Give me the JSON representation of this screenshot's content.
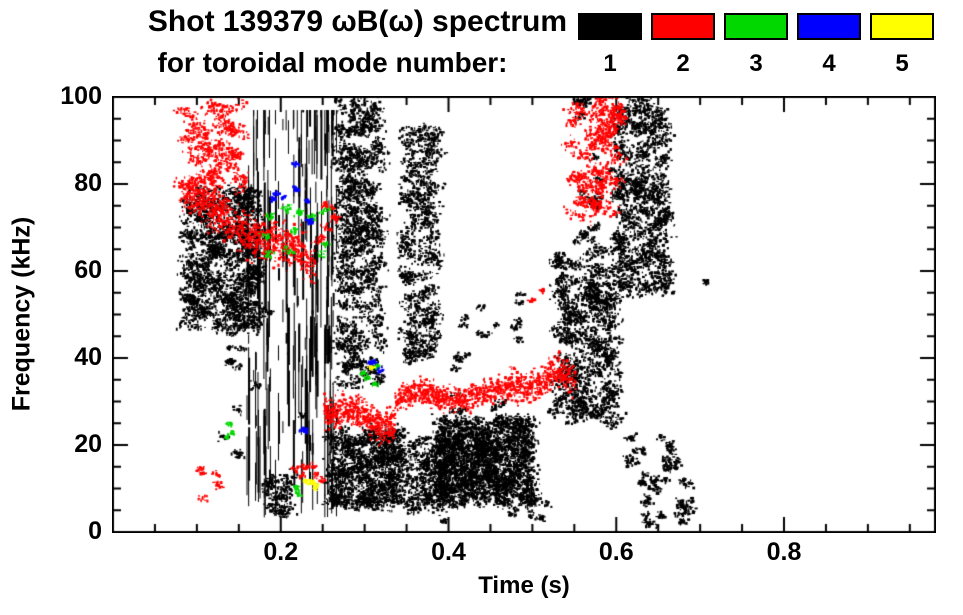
{
  "header": {
    "title_line1": "Shot 139379 ωB(ω) spectrum",
    "title_line2": "for toroidal mode number:"
  },
  "legend": {
    "entries": [
      {
        "label": "1",
        "color": "#000000"
      },
      {
        "label": "2",
        "color": "#ff0000"
      },
      {
        "label": "3",
        "color": "#00d800"
      },
      {
        "label": "4",
        "color": "#0000ff"
      },
      {
        "label": "5",
        "color": "#ffff00"
      }
    ]
  },
  "chart_data": {
    "type": "scatter",
    "title": "Shot 139379 ωB(ω) spectrum for toroidal mode number",
    "xlabel": "Time (s)",
    "ylabel": "Frequency (kHz)",
    "xlim": [
      0.0,
      0.98
    ],
    "ylim": [
      0,
      100
    ],
    "grid": false,
    "legend_position": "top-right",
    "x_major_ticks": [
      0.2,
      0.4,
      0.6,
      0.8
    ],
    "x_major_labels": [
      "0.2",
      "0.4",
      "0.6",
      "0.8"
    ],
    "x_minor_step": 0.05,
    "y_major_ticks": [
      0,
      20,
      40,
      60,
      80,
      100
    ],
    "y_major_labels": [
      "0",
      "20",
      "40",
      "60",
      "80",
      "100"
    ],
    "y_minor_step": 5,
    "series": [
      {
        "name": "n=1",
        "color": "#000000",
        "clusters": [
          {
            "shape": "blob",
            "t": [
              0.085,
              0.175
            ],
            "f": [
              47,
              79
            ],
            "n": 3000
          },
          {
            "shape": "blob",
            "t": [
              0.125,
              0.17
            ],
            "f": [
              10,
              46
            ],
            "n": 130,
            "spread": 3
          },
          {
            "shape": "vstreaks",
            "t": [
              0.155,
              0.268
            ],
            "f": [
              3,
              97
            ],
            "lines": 60
          },
          {
            "shape": "blob",
            "t": [
              0.185,
              0.215
            ],
            "f": [
              4,
              13
            ],
            "n": 260
          },
          {
            "shape": "blob",
            "t": [
              0.268,
              0.318
            ],
            "f": [
              34,
              100
            ],
            "n": 2600
          },
          {
            "shape": "blob",
            "t": [
              0.255,
              0.345
            ],
            "f": [
              6,
              24
            ],
            "n": 2200
          },
          {
            "shape": "blob",
            "t": [
              0.345,
              0.385
            ],
            "f": [
              40,
              93
            ],
            "n": 1600
          },
          {
            "shape": "blob",
            "t": [
              0.35,
              0.4
            ],
            "f": [
              5,
              22
            ],
            "n": 800
          },
          {
            "shape": "blob",
            "t": [
              0.385,
              0.5
            ],
            "f": [
              7,
              26
            ],
            "n": 4000
          },
          {
            "shape": "blob",
            "t": [
              0.4,
              0.485
            ],
            "f": [
              28,
              55
            ],
            "n": 240,
            "spread": 3
          },
          {
            "shape": "blob",
            "t": [
              0.46,
              0.52
            ],
            "f": [
              3,
              10
            ],
            "n": 120,
            "spread": 3
          },
          {
            "shape": "blob",
            "t": [
              0.525,
              0.6
            ],
            "f": [
              25,
              65
            ],
            "n": 2300
          },
          {
            "shape": "blob",
            "t": [
              0.55,
              0.58
            ],
            "f": [
              66,
              100
            ],
            "n": 280,
            "spread": 3
          },
          {
            "shape": "blob",
            "t": [
              0.6,
              0.66
            ],
            "f": [
              55,
              100
            ],
            "n": 2300
          },
          {
            "shape": "blob",
            "t": [
              0.61,
              0.685
            ],
            "f": [
              8,
              22
            ],
            "n": 330,
            "spread": 3
          },
          {
            "shape": "blob",
            "t": [
              0.625,
              0.69
            ],
            "f": [
              2,
              8
            ],
            "n": 200,
            "spread": 3
          },
          {
            "shape": "blob",
            "t": [
              0.07,
              0.72
            ],
            "f": [
              2,
              98
            ],
            "n": 90,
            "spread": 2
          }
        ]
      },
      {
        "name": "n=2",
        "color": "#ff0000",
        "clusters": [
          {
            "shape": "blob",
            "t": [
              0.082,
              0.152
            ],
            "f": [
              74,
              99
            ],
            "n": 900
          },
          {
            "shape": "band",
            "t": [
              0.095,
              0.24
            ],
            "f0": 76,
            "f1": 62,
            "thick": 7,
            "n": 750
          },
          {
            "shape": "blob",
            "t": [
              0.1,
              0.125
            ],
            "f": [
              5,
              16
            ],
            "n": 60,
            "spread": 3
          },
          {
            "shape": "band",
            "t": [
              0.25,
              0.335
            ],
            "f0": 29,
            "f1": 25,
            "thick": 5,
            "n": 500
          },
          {
            "shape": "band",
            "t": [
              0.335,
              0.47
            ],
            "f0": 31,
            "f1": 32,
            "thick": 4,
            "n": 650
          },
          {
            "shape": "band",
            "t": [
              0.47,
              0.55
            ],
            "f0": 33,
            "f1": 37,
            "thick": 5,
            "n": 420
          },
          {
            "shape": "blob",
            "t": [
              0.215,
              0.25
            ],
            "f": [
              6,
              16
            ],
            "n": 70,
            "spread": 3
          },
          {
            "shape": "blob",
            "t": [
              0.545,
              0.605
            ],
            "f": [
              72,
              100
            ],
            "n": 950
          },
          {
            "shape": "blob",
            "t": [
              0.24,
              0.265
            ],
            "f": [
              66,
              76
            ],
            "n": 80,
            "spread": 3
          },
          {
            "shape": "blob",
            "t": [
              0.495,
              0.515
            ],
            "f": [
              52,
              57
            ],
            "n": 25,
            "spread": 2
          }
        ]
      },
      {
        "name": "n=3",
        "color": "#00d800",
        "clusters": [
          {
            "shape": "blob",
            "t": [
              0.175,
              0.255
            ],
            "f": [
              62,
              82
            ],
            "n": 130,
            "spread": 3
          },
          {
            "shape": "blob",
            "t": [
              0.128,
              0.142
            ],
            "f": [
              20,
              26
            ],
            "n": 30,
            "spread": 2
          },
          {
            "shape": "blob",
            "t": [
              0.205,
              0.222
            ],
            "f": [
              9,
              14
            ],
            "n": 28,
            "spread": 2
          },
          {
            "shape": "blob",
            "t": [
              0.295,
              0.318
            ],
            "f": [
              34,
              39
            ],
            "n": 45,
            "spread": 2
          }
        ]
      },
      {
        "name": "n=4",
        "color": "#0000ff",
        "clusters": [
          {
            "shape": "blob",
            "t": [
              0.188,
              0.218
            ],
            "f": [
              76,
              85
            ],
            "n": 60,
            "spread": 2
          },
          {
            "shape": "blob",
            "t": [
              0.225,
              0.242
            ],
            "f": [
              70,
              77
            ],
            "n": 30,
            "spread": 2
          },
          {
            "shape": "blob",
            "t": [
              0.3,
              0.318
            ],
            "f": [
              36,
              40
            ],
            "n": 30,
            "spread": 2
          },
          {
            "shape": "blob",
            "t": [
              0.225,
              0.238
            ],
            "f": [
              23,
              27
            ],
            "n": 20,
            "spread": 2
          }
        ]
      },
      {
        "name": "n=5",
        "color": "#ffff00",
        "clusters": [
          {
            "shape": "blob",
            "t": [
              0.225,
              0.245
            ],
            "f": [
              10,
              15
            ],
            "n": 45,
            "spread": 2
          },
          {
            "shape": "blob",
            "t": [
              0.3,
              0.312
            ],
            "f": [
              36,
              39
            ],
            "n": 15,
            "spread": 2
          }
        ]
      }
    ]
  }
}
